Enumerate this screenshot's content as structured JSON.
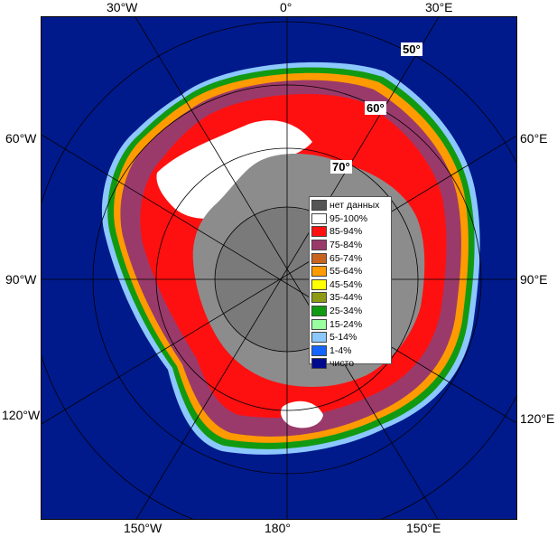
{
  "map": {
    "longitude_labels": {
      "top": [
        "30°W",
        "0°",
        "30°E"
      ],
      "left": [
        "60°W",
        "90°W",
        "120°W"
      ],
      "right": [
        "60°E",
        "90°E",
        "120°E"
      ],
      "bottom": [
        "150°W",
        "180°",
        "150°E"
      ]
    },
    "latitude_labels": [
      "50°",
      "60°",
      "70°"
    ],
    "colors": {
      "ocean": "#001a8c",
      "land": "#8c8c8c",
      "no_data": "#555555",
      "graticule": "#000000"
    }
  },
  "legend": {
    "items": [
      {
        "label": "нет данных",
        "color": "#555555"
      },
      {
        "label": "95-100%",
        "color": "#ffffff"
      },
      {
        "label": "85-94%",
        "color": "#ff1010"
      },
      {
        "label": "75-84%",
        "color": "#9a3a6a"
      },
      {
        "label": "65-74%",
        "color": "#c8641e"
      },
      {
        "label": "55-64%",
        "color": "#ff9a00"
      },
      {
        "label": "45-54%",
        "color": "#ffff00"
      },
      {
        "label": "35-44%",
        "color": "#8c9a14"
      },
      {
        "label": "25-34%",
        "color": "#119a11"
      },
      {
        "label": "15-24%",
        "color": "#9affa0"
      },
      {
        "label": "5-14%",
        "color": "#8cc8ff"
      },
      {
        "label": "1-4%",
        "color": "#1464ff"
      },
      {
        "label": "чисто",
        "color": "#000a8c"
      }
    ]
  }
}
